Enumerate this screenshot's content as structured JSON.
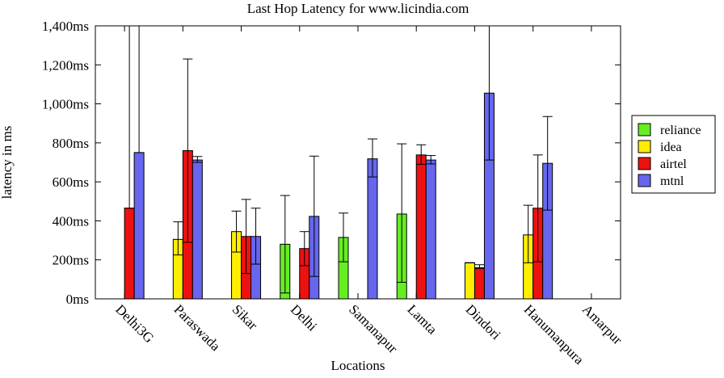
{
  "chart_data": {
    "type": "bar",
    "title": "Last Hop Latency for www.licindia.com",
    "xlabel": "Locations",
    "ylabel": "latency in ms",
    "ylim": [
      0,
      1400
    ],
    "yticks": [
      0,
      200,
      400,
      600,
      800,
      1000,
      1200,
      1400
    ],
    "ytick_labels": [
      "0ms",
      "200ms",
      "400ms",
      "600ms",
      "800ms",
      "1,000ms",
      "1,200ms",
      "1,400ms"
    ],
    "categories": [
      "Delhi3G",
      "Paraswada",
      "Sikar",
      "Delhi",
      "Samanapur",
      "Lamta",
      "Dindori",
      "Hanumanpura",
      "Amarpur"
    ],
    "legend_position": "right",
    "series": [
      {
        "name": "reliance",
        "color": "#66ee22",
        "values": [
          null,
          null,
          null,
          280,
          315,
          435,
          null,
          null,
          null
        ],
        "err_low": [
          null,
          null,
          null,
          30,
          190,
          85,
          null,
          null,
          null
        ],
        "err_high": [
          null,
          null,
          null,
          530,
          440,
          795,
          null,
          null,
          null
        ]
      },
      {
        "name": "idea",
        "color": "#ffee00",
        "values": [
          null,
          305,
          345,
          null,
          null,
          null,
          185,
          328,
          null
        ],
        "err_low": [
          null,
          225,
          240,
          null,
          null,
          null,
          185,
          185,
          null
        ],
        "err_high": [
          null,
          395,
          450,
          null,
          null,
          null,
          185,
          480,
          null
        ]
      },
      {
        "name": "airtel",
        "color": "#ee1111",
        "values": [
          465,
          760,
          320,
          258,
          null,
          738,
          160,
          465,
          null
        ],
        "err_low": [
          465,
          290,
          130,
          170,
          null,
          690,
          155,
          190,
          null
        ],
        "err_high": [
          1400,
          1230,
          510,
          345,
          null,
          790,
          175,
          738,
          null
        ],
        "cap_high": [
          false,
          true,
          true,
          true,
          null,
          true,
          true,
          true,
          null
        ]
      },
      {
        "name": "mtnl",
        "color": "#6666ee",
        "values": [
          750,
          712,
          320,
          423,
          718,
          712,
          1055,
          695,
          null
        ],
        "err_low": [
          750,
          700,
          178,
          115,
          625,
          692,
          712,
          455,
          null
        ],
        "err_high": [
          1400,
          730,
          465,
          732,
          820,
          735,
          1400,
          935,
          null
        ],
        "cap_high": [
          false,
          true,
          true,
          true,
          true,
          true,
          true,
          true,
          null
        ]
      }
    ]
  }
}
